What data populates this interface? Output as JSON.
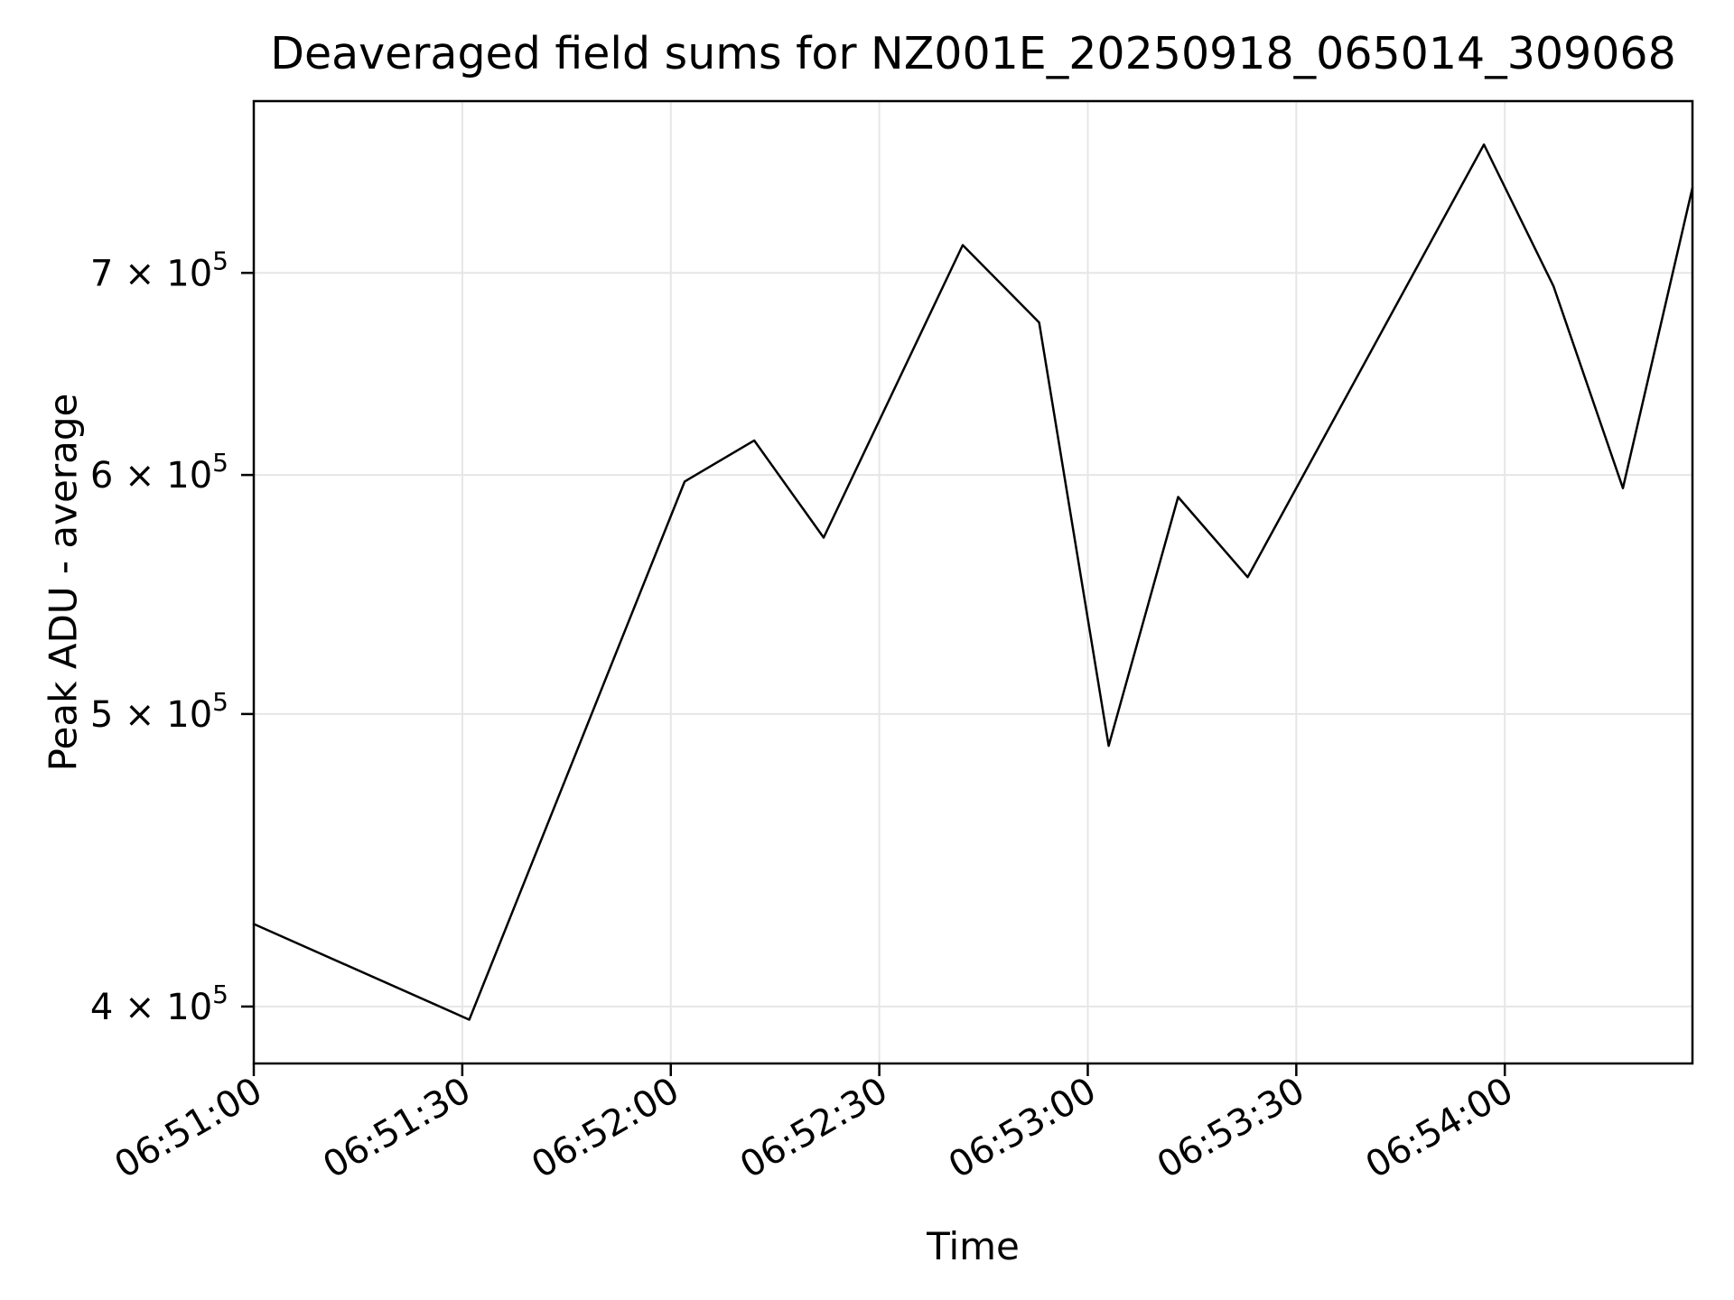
{
  "chart_data": {
    "type": "line",
    "title": "Deaveraged field sums for NZ001E_20250918_065014_309068",
    "xlabel": "Time",
    "ylabel": "Peak ADU - average",
    "yscale": "log",
    "grid": true,
    "legend_position": "none",
    "x_unit": "seconds after 06:51:00",
    "x": [
      0,
      31,
      62,
      72,
      82,
      102,
      113,
      123,
      133,
      143,
      177,
      187,
      197,
      207
    ],
    "x_times": [
      "06:51:00",
      "06:51:31",
      "06:52:02",
      "06:52:12",
      "06:52:22",
      "06:52:42",
      "06:52:53",
      "06:53:03",
      "06:53:13",
      "06:53:23",
      "06:53:57",
      "06:54:07",
      "06:54:17",
      "06:54:27"
    ],
    "y": [
      426000,
      396000,
      597000,
      616000,
      572000,
      715000,
      674000,
      488000,
      590000,
      555000,
      772000,
      693000,
      594000,
      747000
    ],
    "xlim": [
      0,
      207
    ],
    "ylim": [
      383000,
      798000
    ],
    "xticks": {
      "seconds": [
        0,
        30,
        60,
        90,
        120,
        150,
        180
      ],
      "labels": [
        "06:51:00",
        "06:51:30",
        "06:52:00",
        "06:52:30",
        "06:53:00",
        "06:53:30",
        "06:54:00"
      ],
      "rotation_deg": 30
    },
    "yticks": {
      "values": [
        400000,
        500000,
        600000,
        700000
      ],
      "labels": [
        "4 × 10^5",
        "5 × 10^5",
        "6 × 10^5",
        "7 × 10^5"
      ]
    },
    "colors": {
      "line": "#000000",
      "grid": "#e6e6e6",
      "spine": "#000000",
      "text": "#000000",
      "background": "#ffffff"
    }
  }
}
